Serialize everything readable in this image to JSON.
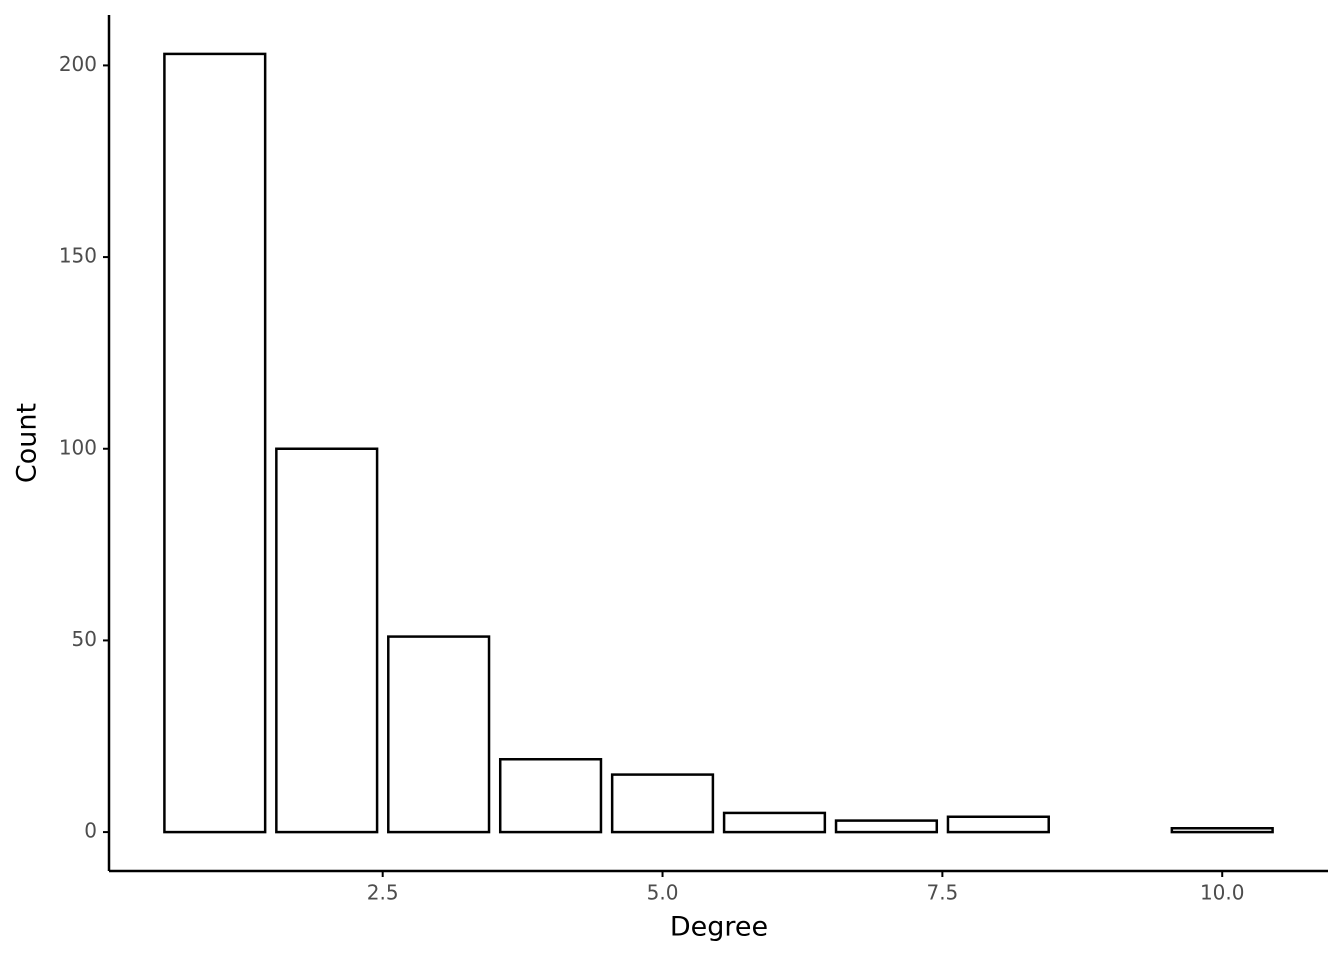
{
  "chart_data": {
    "type": "bar",
    "x_label": "Degree",
    "y_label": "Count",
    "x": [
      1,
      2,
      3,
      4,
      5,
      6,
      7,
      8,
      10
    ],
    "values": [
      203,
      100,
      51,
      19,
      15,
      5,
      3,
      4,
      1
    ],
    "color": "#ffffff",
    "edge_color": "#000000",
    "xlim": [
      0.055,
      10.945
    ],
    "xticks": [
      2.5,
      {
        "value": 5,
        "label": "5.0"
      },
      7.5,
      {
        "value": 10,
        "label": "10.0"
      }
    ],
    "ylim": [
      -10.15,
      213.15
    ],
    "yticks": [
      0,
      50,
      100,
      150,
      200
    ],
    "grid": false
  }
}
